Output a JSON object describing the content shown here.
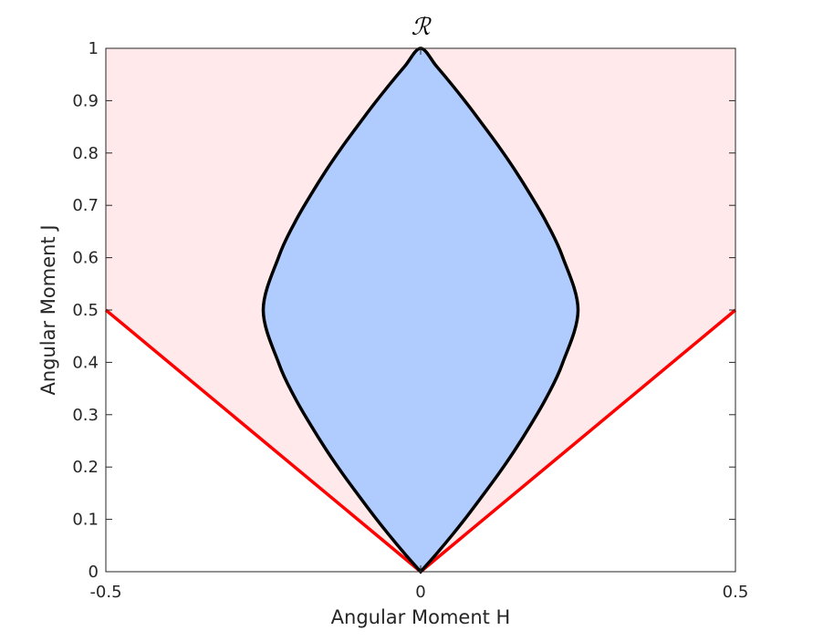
{
  "chart_data": {
    "type": "area",
    "title": "ℛ",
    "xlabel": "Angular Moment H",
    "ylabel": "Angular Moment J",
    "xlim": [
      -0.5,
      0.5
    ],
    "ylim": [
      0,
      1
    ],
    "xticks": [
      -0.5,
      0,
      0.5
    ],
    "xtick_labels": [
      "-0.5",
      "0",
      "0.5"
    ],
    "yticks": [
      0,
      0.1,
      0.2,
      0.3,
      0.4,
      0.5,
      0.6,
      0.7,
      0.8,
      0.9,
      1
    ],
    "ytick_labels": [
      "0",
      "0.1",
      "0.2",
      "0.3",
      "0.4",
      "0.5",
      "0.6",
      "0.7",
      "0.8",
      "0.9",
      "1"
    ],
    "grid": false,
    "legend": "none",
    "series": [
      {
        "kind": "shaded_region_above_line",
        "color": "#ffe9ea",
        "x": [
          -0.5,
          0,
          0.5
        ],
        "y": [
          0.5,
          0,
          0.5
        ]
      },
      {
        "kind": "line",
        "color": "#ff0000",
        "x": [
          -0.5,
          0,
          0.5
        ],
        "y": [
          0.5,
          0,
          0.5
        ]
      },
      {
        "kind": "filled_closed_curve",
        "fill": "#b0ccff",
        "edge": "#000000",
        "x": [
          0,
          0.025,
          0.05,
          0.075,
          0.1,
          0.125,
          0.15,
          0.175,
          0.2,
          0.225,
          0.25,
          0.225,
          0.2,
          0.175,
          0.15,
          0.125,
          0.1,
          0.075,
          0.05,
          0.025,
          0,
          -0.025,
          -0.05,
          -0.075,
          -0.1,
          -0.125,
          -0.15,
          -0.175,
          -0.2,
          -0.225,
          -0.25,
          -0.225,
          -0.2,
          -0.175,
          -0.15,
          -0.125,
          -0.1,
          -0.075,
          -0.05,
          -0.025,
          0
        ],
        "y": [
          0,
          0.034,
          0.07,
          0.108,
          0.148,
          0.189,
          0.233,
          0.281,
          0.333,
          0.397,
          0.5,
          0.603,
          0.667,
          0.719,
          0.767,
          0.811,
          0.852,
          0.892,
          0.93,
          0.966,
          1,
          0.966,
          0.93,
          0.892,
          0.852,
          0.811,
          0.767,
          0.719,
          0.667,
          0.603,
          0.5,
          0.397,
          0.333,
          0.281,
          0.233,
          0.189,
          0.148,
          0.108,
          0.07,
          0.034,
          0
        ]
      }
    ]
  }
}
